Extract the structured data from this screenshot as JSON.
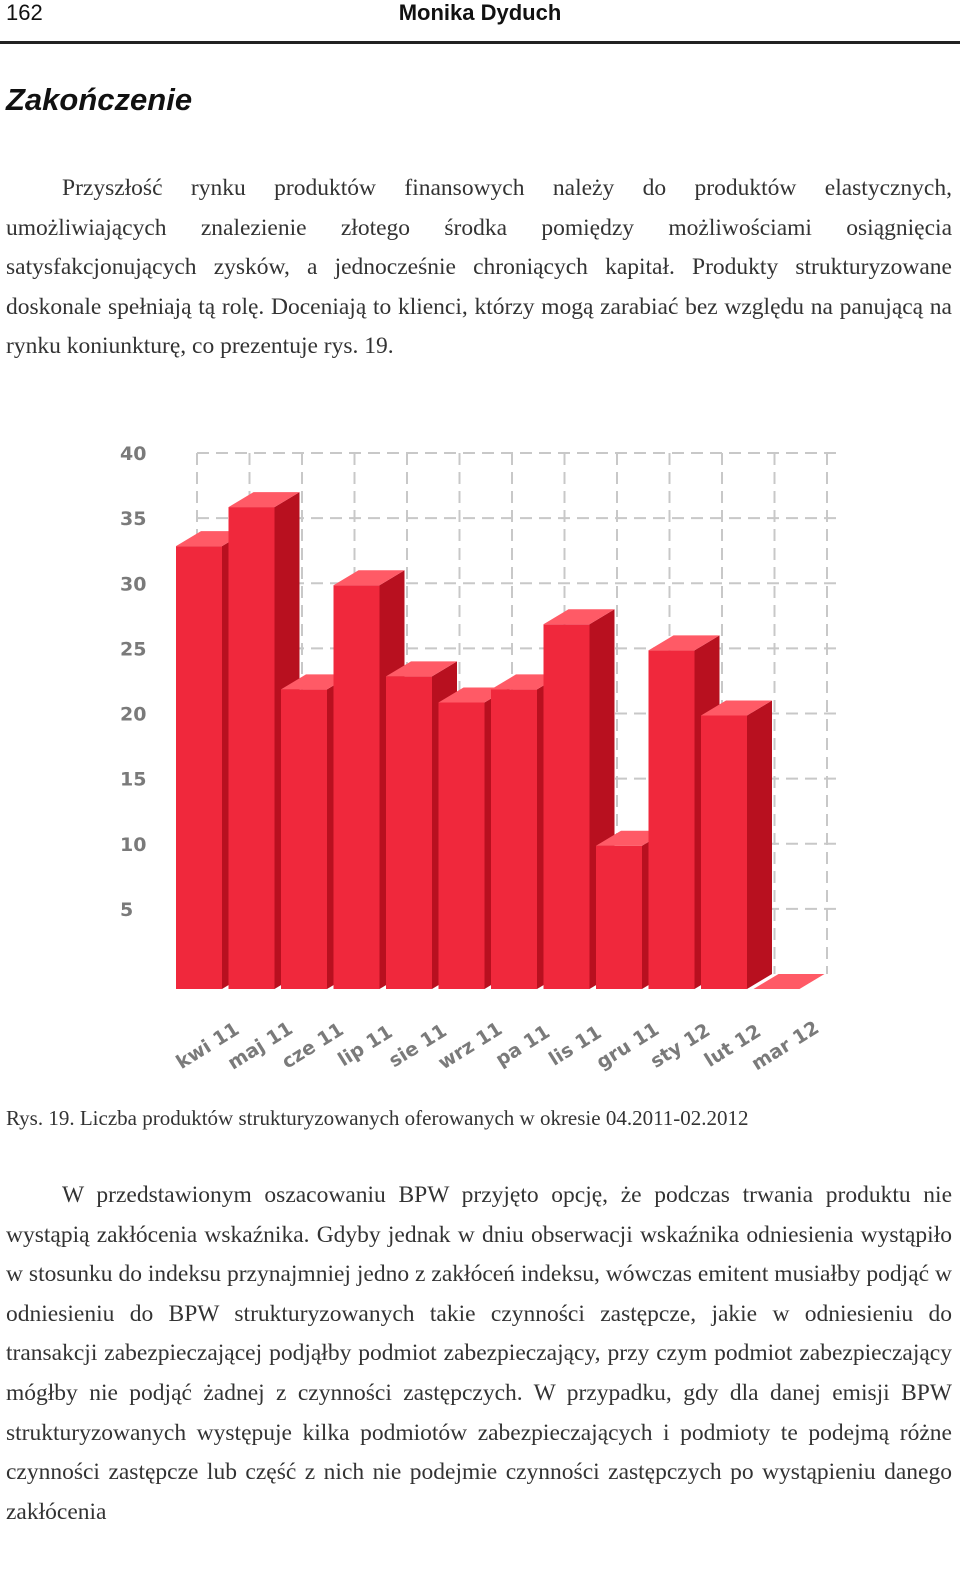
{
  "header": {
    "page_number": "162",
    "author": "Monika Dyduch"
  },
  "section": {
    "heading": "Zakończenie"
  },
  "paragraphs": {
    "p1": "Przyszłość rynku produktów finansowych należy do produktów elastycznych, umożliwiających znalezienie złotego środka pomiędzy możliwościami osiągnięcia satysfakcjonujących zysków, a jednocześnie chroniących kapitał. Produkty strukturyzowane doskonale spełniają tą rolę. Doceniają to klienci, którzy mogą zarabiać bez względu na panującą na rynku koniunkturę, co prezentuje rys. 19.",
    "p2": "W przedstawionym oszacowaniu BPW przyjęto opcję, że podczas trwania produktu nie wystąpią zakłócenia wskaźnika. Gdyby jednak w dniu obserwacji wskaźnika odniesienia wystąpiło w stosunku do indeksu przynajmniej jedno z zakłóceń indeksu, wówczas emitent musiałby podjąć w odniesieniu do BPW strukturyzowanych takie czynności zastępcze, jakie w odniesieniu do transakcji zabezpieczającej podjąłby podmiot zabezpieczający, przy czym podmiot zabezpieczający mógłby nie podjąć żadnej z czynności zastępczych. W przypadku, gdy dla danej emisji BPW strukturyzowanych występuje kilka podmiotów zabezpieczających i podmioty te podejmą różne czynności zastępcze lub część z nich nie podejmie czynności zastępczych po wystąpieniu danego zakłócenia"
  },
  "figure": {
    "caption": "Rys. 19. Liczba produktów strukturyzowanych oferowanych w okresie 04.2011-02.2012"
  },
  "chart_data": {
    "type": "bar",
    "style": "3d",
    "categories": [
      "kwi 11",
      "maj 11",
      "cze 11",
      "lip 11",
      "sie 11",
      "wrz 11",
      "pa 11",
      "lis 11",
      "gru 11",
      "sty 12",
      "lut 12",
      "mar 12"
    ],
    "values": [
      34,
      37,
      23,
      31,
      24,
      22,
      23,
      28,
      11,
      26,
      21,
      0
    ],
    "yticks": [
      5,
      10,
      15,
      20,
      25,
      30,
      35,
      40
    ],
    "ylim": [
      0,
      40
    ],
    "grid": true,
    "grid_style": "dashed",
    "bar_color": "#f0283c",
    "bar_side_color": "#b8101f",
    "bar_top_color": "#ff5a66",
    "grid_color": "#c8c8c8",
    "tick_color": "#7a7a7a",
    "title": "",
    "xlabel": "",
    "ylabel": ""
  }
}
